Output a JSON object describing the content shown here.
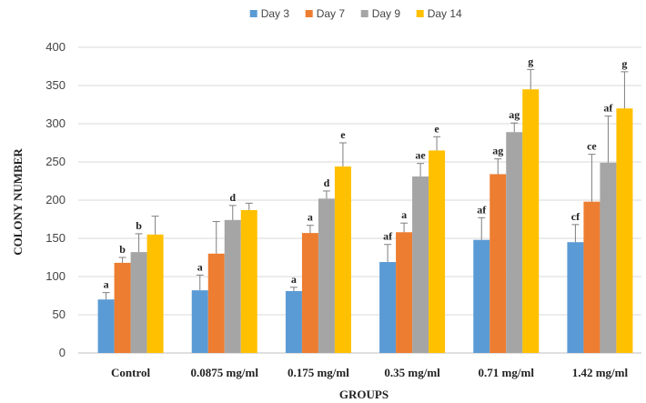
{
  "chart_data": {
    "type": "bar",
    "xlabel": "GROUPS",
    "ylabel": "COLONY NUMBER",
    "ylim": [
      0,
      400
    ],
    "yticks": [
      0,
      50,
      100,
      150,
      200,
      250,
      300,
      350,
      400
    ],
    "grid": true,
    "legend_position": "top",
    "categories": [
      "Control",
      "0.0875 mg/ml",
      "0.175 mg/ml",
      "0.35 mg/ml",
      "0.71 mg/ml",
      "1.42 mg/ml"
    ],
    "series": [
      {
        "name": "Day 3",
        "color": "#5B9BD5",
        "values": [
          70,
          82,
          81,
          119,
          148,
          145
        ],
        "errors": [
          9,
          20,
          5,
          23,
          29,
          23
        ],
        "labels": [
          "a",
          "a",
          "a",
          "af",
          "af",
          "cf"
        ]
      },
      {
        "name": "Day 7",
        "color": "#ED7D31",
        "values": [
          118,
          130,
          157,
          158,
          234,
          198
        ],
        "errors": [
          7,
          42,
          10,
          12,
          20,
          62
        ],
        "labels": [
          "b",
          "",
          "a",
          "a",
          "ag",
          "ce"
        ]
      },
      {
        "name": "Day 9",
        "color": "#A5A5A5",
        "values": [
          132,
          174,
          202,
          231,
          289,
          249
        ],
        "errors": [
          24,
          19,
          10,
          17,
          12,
          61
        ],
        "labels": [
          "b",
          "d",
          "d",
          "ae",
          "ag",
          "af"
        ]
      },
      {
        "name": "Day 14",
        "color": "#FFC000",
        "values": [
          155,
          187,
          244,
          265,
          345,
          320
        ],
        "errors": [
          24,
          9,
          31,
          18,
          26,
          48
        ],
        "labels": [
          "",
          "",
          "e",
          "e",
          "g",
          "g"
        ]
      }
    ]
  }
}
